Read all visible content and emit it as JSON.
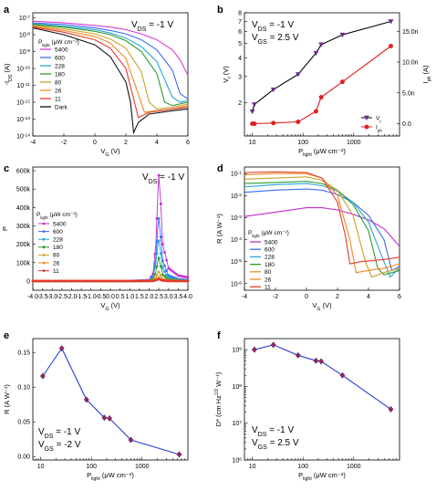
{
  "chart_data": [
    {
      "panel": "a",
      "type": "line",
      "annotation": "V_DS = -1 V",
      "xlabel": "V_G (V)",
      "ylabel": "-I_DS (A)",
      "xlim": [
        -4,
        6
      ],
      "ylim_log10": [
        -14,
        -6.7
      ],
      "y_scale": "log",
      "xticks": [
        -4,
        -2,
        0,
        2,
        4,
        6
      ],
      "yticks_exp": [
        -14,
        -13,
        -12,
        -11,
        -10,
        -9,
        -8,
        -7
      ],
      "legend_title": "P_light (μW cm⁻²)",
      "legend_position": "left",
      "series": [
        {
          "name": "5400",
          "color": "#d63ad6",
          "x": [
            -4,
            -2,
            0,
            1,
            2,
            3,
            4,
            5,
            5.5,
            6
          ],
          "log10y": [
            -7.2,
            -7.3,
            -7.45,
            -7.55,
            -7.7,
            -7.95,
            -8.3,
            -8.9,
            -9.5,
            -10.4
          ]
        },
        {
          "name": "600",
          "color": "#3a6df0",
          "x": [
            -4,
            -2,
            0,
            1,
            2,
            3,
            4,
            5,
            5.5,
            6
          ],
          "log10y": [
            -7.3,
            -7.4,
            -7.6,
            -7.75,
            -7.95,
            -8.3,
            -8.9,
            -10.1,
            -11.5,
            -11.8
          ]
        },
        {
          "name": "228",
          "color": "#28a6d6",
          "x": [
            -4,
            -2,
            0,
            1,
            2,
            3,
            4,
            5,
            5.5,
            6
          ],
          "log10y": [
            -7.35,
            -7.5,
            -7.7,
            -7.9,
            -8.2,
            -8.7,
            -9.6,
            -11.7,
            -12.0,
            -11.9
          ]
        },
        {
          "name": "180",
          "color": "#2c9a2c",
          "x": [
            -4,
            -2,
            0,
            1,
            2,
            3,
            4,
            4.5,
            5,
            6
          ],
          "log10y": [
            -7.4,
            -7.55,
            -7.8,
            -8.0,
            -8.35,
            -9.0,
            -10.3,
            -12.0,
            -12.2,
            -12.0
          ]
        },
        {
          "name": "80",
          "color": "#c8a22a",
          "x": [
            -4,
            -2,
            0,
            1,
            2,
            3,
            3.5,
            4,
            5,
            6
          ],
          "log10y": [
            -7.45,
            -7.65,
            -7.95,
            -8.25,
            -8.8,
            -10.2,
            -12.0,
            -12.4,
            -12.3,
            -12.1
          ]
        },
        {
          "name": "26",
          "color": "#f08a1e",
          "x": [
            -4,
            -2,
            0,
            1,
            2,
            2.8,
            3.2,
            4,
            5,
            6
          ],
          "log10y": [
            -7.5,
            -7.75,
            -8.1,
            -8.5,
            -9.4,
            -11.5,
            -12.6,
            -12.5,
            -12.4,
            -12.2
          ]
        },
        {
          "name": "11",
          "color": "#e23a2e",
          "x": [
            -4,
            -2,
            0,
            1,
            2,
            2.5,
            2.8,
            3.5,
            5,
            6
          ],
          "log10y": [
            -7.55,
            -7.85,
            -8.3,
            -8.8,
            -10.0,
            -11.8,
            -12.9,
            -12.6,
            -12.4,
            -12.3
          ]
        },
        {
          "name": "Dark",
          "color": "#111111",
          "x": [
            -4,
            -2,
            0,
            1,
            2,
            2.3,
            2.5,
            2.8,
            3.5,
            5,
            6
          ],
          "log10y": [
            -7.6,
            -8.0,
            -8.6,
            -9.3,
            -10.8,
            -12.0,
            -13.8,
            -13.2,
            -12.7,
            -12.5,
            -12.4
          ]
        }
      ]
    },
    {
      "panel": "b",
      "type": "line",
      "annotations": [
        "V_DS = -1 V",
        "V_GS = 2.5 V"
      ],
      "xlabel": "P_light (μW cm⁻²)",
      "ylabel": "V_t (V)",
      "y2label": "I_ph (A)",
      "x_scale": "log",
      "y_scale": "log",
      "xlim": [
        7,
        8000
      ],
      "ylim": [
        1.2,
        8
      ],
      "y2lim": [
        -2,
        18
      ],
      "xticks": [
        10,
        100,
        1000
      ],
      "xtick_labels": [
        "10",
        "100",
        "1000"
      ],
      "yticks": [
        2,
        3,
        4,
        5,
        6,
        7,
        8
      ],
      "y2ticks": [
        0,
        5,
        10,
        15
      ],
      "y2tick_labels": [
        "0.0",
        "5.0n",
        "10.0n",
        "15.0n"
      ],
      "legend_position": "bottom-right",
      "series": [
        {
          "name": "V_t",
          "color": "#000000",
          "marker_color": "#6a2b8a",
          "axis": "left",
          "x": [
            10,
            11,
            26,
            80,
            180,
            228,
            600,
            5400
          ],
          "y": [
            1.75,
            1.95,
            2.45,
            3.1,
            4.3,
            4.9,
            5.7,
            7.0
          ]
        },
        {
          "name": "I_ph",
          "color": "#e02020",
          "marker_color": "#e02020",
          "axis": "right",
          "x": [
            10,
            11,
            26,
            80,
            180,
            228,
            600,
            5400
          ],
          "y": [
            0.0,
            0.0,
            0.1,
            0.3,
            2.0,
            4.3,
            6.8,
            12.6
          ]
        }
      ]
    },
    {
      "panel": "c",
      "type": "line",
      "annotation": "V_DS = -1 V",
      "xlabel": "V_G (V)",
      "ylabel": "P",
      "xlim": [
        -4,
        4
      ],
      "ylim": [
        -50000,
        620000
      ],
      "xticks": [
        -4.0,
        -3.5,
        -3.0,
        -2.5,
        -2.0,
        -1.5,
        -1.0,
        -0.5,
        0.0,
        0.5,
        1.0,
        1.5,
        2.0,
        2.5,
        3.0,
        3.5,
        4.0
      ],
      "yticks": [
        0,
        100000,
        200000,
        300000,
        400000,
        500000,
        600000
      ],
      "ytick_labels": [
        "0",
        "100k",
        "200k",
        "300k",
        "400k",
        "500k",
        "600k"
      ],
      "legend_title": "P_light (μW cm⁻²)",
      "legend_position": "left",
      "series": [
        {
          "name": "5400",
          "color": "#c42ad0",
          "x": [
            -4,
            0,
            1,
            2,
            2.2,
            2.35,
            2.45,
            2.5,
            2.6,
            2.7,
            3,
            3.5,
            4
          ],
          "y": [
            0,
            0,
            0,
            5000,
            40000,
            200000,
            480000,
            575000,
            420000,
            200000,
            70000,
            30000,
            20000
          ]
        },
        {
          "name": "600",
          "color": "#3a6df0",
          "x": [
            -4,
            0,
            1,
            2,
            2.2,
            2.35,
            2.45,
            2.5,
            2.6,
            2.7,
            3,
            3.5,
            4
          ],
          "y": [
            0,
            0,
            0,
            3000,
            25000,
            130000,
            300000,
            340000,
            240000,
            110000,
            30000,
            10000,
            5000
          ]
        },
        {
          "name": "228",
          "color": "#28a6d6",
          "x": [
            -4,
            0,
            1,
            2,
            2.2,
            2.35,
            2.45,
            2.5,
            2.6,
            2.7,
            3,
            3.5,
            4
          ],
          "y": [
            0,
            0,
            0,
            2000,
            20000,
            100000,
            200000,
            220000,
            150000,
            70000,
            15000,
            5000,
            2000
          ]
        },
        {
          "name": "180",
          "color": "#2c9a2c",
          "x": [
            -4,
            0,
            1,
            2,
            2.2,
            2.35,
            2.45,
            2.5,
            2.6,
            2.7,
            3,
            3.5,
            4
          ],
          "y": [
            0,
            0,
            0,
            1000,
            10000,
            50000,
            110000,
            125000,
            80000,
            35000,
            8000,
            2000,
            1000
          ]
        },
        {
          "name": "80",
          "color": "#c8a22a",
          "x": [
            -4,
            0,
            1,
            2,
            2.2,
            2.35,
            2.45,
            2.5,
            2.6,
            2.7,
            3,
            3.5,
            4
          ],
          "y": [
            0,
            0,
            0,
            500,
            5000,
            20000,
            45000,
            50000,
            30000,
            12000,
            3000,
            1000,
            500
          ]
        },
        {
          "name": "26",
          "color": "#f08a1e",
          "x": [
            -4,
            0,
            1,
            2,
            2.2,
            2.35,
            2.45,
            2.5,
            2.6,
            2.7,
            3,
            3.5,
            4
          ],
          "y": [
            0,
            0,
            0,
            200,
            2000,
            8000,
            18000,
            20000,
            12000,
            5000,
            1000,
            300,
            100
          ]
        },
        {
          "name": "11",
          "color": "#e23a2e",
          "x": [
            -4,
            0,
            1,
            2,
            2.2,
            2.35,
            2.45,
            2.5,
            2.6,
            2.7,
            3,
            3.5,
            4
          ],
          "y": [
            0,
            0,
            0,
            100,
            1000,
            4000,
            9000,
            10000,
            6000,
            2500,
            500,
            100,
            50
          ]
        }
      ]
    },
    {
      "panel": "d",
      "type": "line",
      "xlabel": "V_G (V)",
      "ylabel": "R (A W⁻¹)",
      "xlim": [
        -4,
        6
      ],
      "ylim_log10": [
        -6.3,
        -0.7
      ],
      "y_scale": "log",
      "xticks": [
        -4,
        -2,
        0,
        2,
        4,
        6
      ],
      "yticks_exp": [
        -6,
        -5,
        -4,
        -3,
        -2,
        -1
      ],
      "legend_title": "P_light (μW cm⁻²)",
      "legend_position": "left",
      "series": [
        {
          "name": "5400",
          "color": "#c42ad0",
          "x": [
            -4,
            -2,
            0,
            1,
            2,
            3,
            4,
            5,
            5.5,
            6
          ],
          "log10y": [
            -2.95,
            -2.75,
            -2.55,
            -2.55,
            -2.65,
            -2.85,
            -3.1,
            -3.5,
            -3.9,
            -4.3
          ]
        },
        {
          "name": "600",
          "color": "#3a6df0",
          "x": [
            -4,
            -2,
            0,
            1,
            2,
            3,
            4,
            5,
            5.5,
            5.8,
            6
          ],
          "log10y": [
            -1.85,
            -1.75,
            -1.7,
            -1.75,
            -1.95,
            -2.3,
            -2.9,
            -4.0,
            -5.4,
            -5.3,
            -5.2
          ]
        },
        {
          "name": "228",
          "color": "#28a6d6",
          "x": [
            -4,
            -2,
            0,
            1,
            2,
            3,
            4,
            5,
            5.4,
            6
          ],
          "log10y": [
            -1.6,
            -1.5,
            -1.45,
            -1.55,
            -1.8,
            -2.3,
            -3.2,
            -5.0,
            -5.7,
            -5.3
          ]
        },
        {
          "name": "180",
          "color": "#2c9a2c",
          "x": [
            -4,
            -2,
            0,
            1,
            2,
            3,
            4,
            4.6,
            5,
            6
          ],
          "log10y": [
            -1.45,
            -1.4,
            -1.35,
            -1.45,
            -1.75,
            -2.4,
            -3.6,
            -5.3,
            -5.6,
            -5.4
          ]
        },
        {
          "name": "80",
          "color": "#c8a22a",
          "x": [
            -4,
            -2,
            0,
            1,
            2,
            3,
            3.8,
            4.2,
            5,
            6
          ],
          "log10y": [
            -1.25,
            -1.2,
            -1.15,
            -1.3,
            -1.75,
            -2.9,
            -5.0,
            -5.7,
            -5.5,
            -5.3
          ]
        },
        {
          "name": "26",
          "color": "#f08a1e",
          "x": [
            -4,
            -2,
            0,
            1,
            2,
            2.8,
            3.2,
            4,
            5,
            6
          ],
          "log10y": [
            -1.05,
            -1.0,
            -1.0,
            -1.2,
            -2.0,
            -4.0,
            -5.5,
            -5.4,
            -5.3,
            -5.1
          ]
        },
        {
          "name": "11",
          "color": "#e23a2e",
          "x": [
            -4,
            -2,
            0,
            1,
            2,
            2.5,
            2.8,
            3.5,
            5,
            6
          ],
          "log10y": [
            -0.95,
            -0.92,
            -0.95,
            -1.2,
            -2.3,
            -3.8,
            -5.1,
            -5.0,
            -4.9,
            -4.8
          ]
        }
      ]
    },
    {
      "panel": "e",
      "type": "line",
      "annotations": [
        "V_DS = -1 V",
        "V_GS = -2 V"
      ],
      "xlabel": "P_light (μW cm⁻²)",
      "ylabel": "R (A W⁻¹)",
      "x_scale": "log",
      "xlim": [
        7,
        8000
      ],
      "ylim": [
        -0.005,
        0.17
      ],
      "xticks": [
        10,
        100,
        1000
      ],
      "xtick_labels": [
        "10",
        "100",
        "1000"
      ],
      "yticks": [
        0.0,
        0.05,
        0.1,
        0.15
      ],
      "ytick_labels": [
        "0.00",
        "0.05",
        "0.10",
        "0.15"
      ],
      "series": [
        {
          "name": "R",
          "color": "#2a3cd6",
          "marker_color": "#a0206a",
          "x": [
            11,
            26,
            80,
            180,
            228,
            600,
            5400
          ],
          "y": [
            0.116,
            0.156,
            0.082,
            0.056,
            0.055,
            0.024,
            0.003
          ]
        }
      ]
    },
    {
      "panel": "f",
      "type": "line",
      "annotations": [
        "V_DS = -1 V",
        "V_GS = 2.5 V"
      ],
      "xlabel": "P_light (μW cm⁻²)",
      "ylabel": "D* (cm Hz^1/2 W⁻¹)",
      "x_scale": "log",
      "y_scale": "log",
      "xlim": [
        7,
        8000
      ],
      "ylim_log10": [
        6,
        9.3
      ],
      "xticks": [
        10,
        100,
        1000
      ],
      "xtick_labels": [
        "10",
        "100",
        "1000"
      ],
      "yticks_exp": [
        6,
        7,
        8,
        9
      ],
      "series": [
        {
          "name": "D*",
          "color": "#2a3cd6",
          "marker_color": "#a0206a",
          "x": [
            11,
            26,
            80,
            180,
            228,
            600,
            5400
          ],
          "y": [
            1000000000.0,
            1350000000.0,
            700000000.0,
            500000000.0,
            480000000.0,
            200000000.0,
            24000000.0
          ]
        }
      ]
    }
  ]
}
